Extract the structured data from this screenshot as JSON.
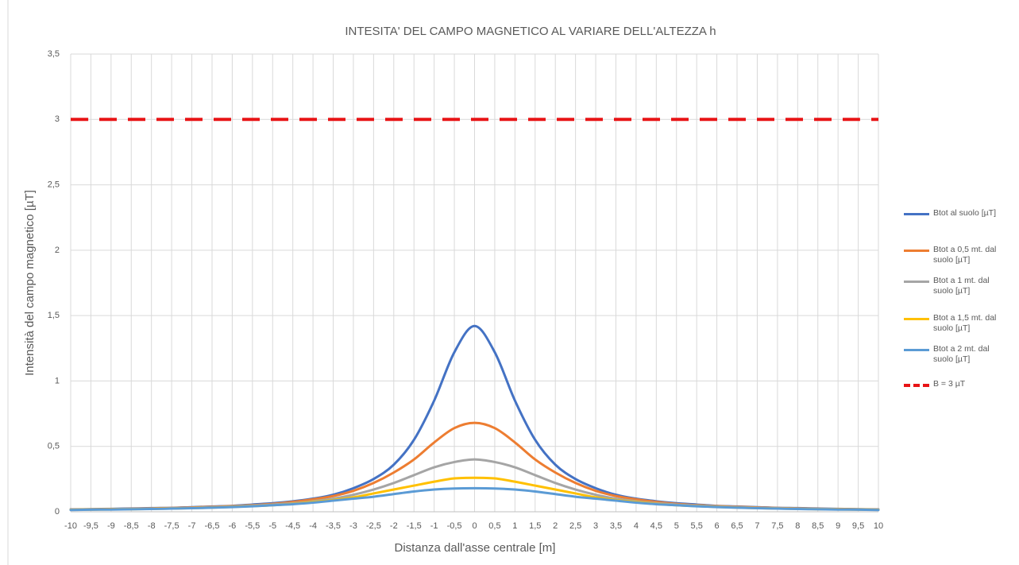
{
  "chart_data": {
    "type": "line",
    "title": "INTESITA' DEL CAMPO MAGNETICO AL VARIARE DELL'ALTEZZA h",
    "x_label": "Distanza dall'asse centrale [m]",
    "y_label": "Intensità del campo magnetico [µT]",
    "categories": [
      "-10",
      "-9,5",
      "-9",
      "-8,5",
      "-8",
      "-7,5",
      "-7",
      "-6,5",
      "-6",
      "-5,5",
      "-5",
      "-4,5",
      "-4",
      "-3,5",
      "-3",
      "-2,5",
      "-2",
      "-1,5",
      "-1",
      "-0,5",
      "0",
      "0,5",
      "1",
      "1,5",
      "2",
      "2,5",
      "3",
      "3,5",
      "4",
      "4,5",
      "5",
      "5,5",
      "6",
      "6,5",
      "7",
      "7,5",
      "8",
      "8,5",
      "9",
      "9,5",
      "10"
    ],
    "ylim": [
      0,
      3.5
    ],
    "yticks": [
      0,
      {
        "value": 0.5,
        "label": "0,5"
      },
      1,
      {
        "value": 1.5,
        "label": "1,5"
      },
      2,
      {
        "value": 2.5,
        "label": "2,5"
      },
      3,
      {
        "value": 3.5,
        "label": "3,5"
      }
    ],
    "grid": true,
    "legend": "right",
    "series": [
      {
        "name": "Btot al suolo [µT]",
        "color": "#4472c4",
        "values": [
          0.018,
          0.02,
          0.022,
          0.025,
          0.028,
          0.03,
          0.035,
          0.04,
          0.045,
          0.055,
          0.065,
          0.08,
          0.1,
          0.13,
          0.18,
          0.25,
          0.36,
          0.55,
          0.85,
          1.22,
          1.42,
          1.22,
          0.85,
          0.55,
          0.36,
          0.25,
          0.18,
          0.13,
          0.1,
          0.08,
          0.065,
          0.055,
          0.045,
          0.04,
          0.035,
          0.03,
          0.028,
          0.025,
          0.022,
          0.02,
          0.018
        ]
      },
      {
        "name": "Btot a 0,5 mt. dal suolo [µT]",
        "color": "#ed7d31",
        "values": [
          0.017,
          0.019,
          0.021,
          0.023,
          0.026,
          0.029,
          0.033,
          0.038,
          0.043,
          0.05,
          0.06,
          0.075,
          0.095,
          0.12,
          0.16,
          0.22,
          0.3,
          0.4,
          0.53,
          0.64,
          0.68,
          0.64,
          0.53,
          0.4,
          0.3,
          0.22,
          0.16,
          0.12,
          0.095,
          0.075,
          0.06,
          0.05,
          0.043,
          0.038,
          0.033,
          0.029,
          0.026,
          0.023,
          0.021,
          0.019,
          0.017
        ]
      },
      {
        "name": "Btot a 1 mt. dal suolo [µT]",
        "color": "#a5a5a5",
        "values": [
          0.016,
          0.018,
          0.02,
          0.022,
          0.024,
          0.027,
          0.03,
          0.035,
          0.04,
          0.047,
          0.055,
          0.065,
          0.08,
          0.1,
          0.13,
          0.17,
          0.22,
          0.28,
          0.34,
          0.38,
          0.4,
          0.38,
          0.34,
          0.28,
          0.22,
          0.17,
          0.13,
          0.1,
          0.08,
          0.065,
          0.055,
          0.047,
          0.04,
          0.035,
          0.03,
          0.027,
          0.024,
          0.022,
          0.02,
          0.018,
          0.016
        ]
      },
      {
        "name": "Btot a 1,5 mt. dal suolo [µT]",
        "color": "#ffc000",
        "values": [
          0.015,
          0.017,
          0.018,
          0.02,
          0.022,
          0.025,
          0.028,
          0.032,
          0.037,
          0.043,
          0.05,
          0.06,
          0.075,
          0.09,
          0.11,
          0.14,
          0.17,
          0.2,
          0.23,
          0.255,
          0.26,
          0.255,
          0.23,
          0.2,
          0.17,
          0.14,
          0.11,
          0.09,
          0.075,
          0.06,
          0.05,
          0.043,
          0.037,
          0.032,
          0.028,
          0.025,
          0.022,
          0.02,
          0.018,
          0.017,
          0.015
        ]
      },
      {
        "name": "Btot a 2 mt. dal suolo [µT]",
        "color": "#5b9bd5",
        "values": [
          0.014,
          0.016,
          0.017,
          0.019,
          0.021,
          0.024,
          0.027,
          0.031,
          0.036,
          0.042,
          0.05,
          0.058,
          0.07,
          0.085,
          0.1,
          0.115,
          0.135,
          0.155,
          0.17,
          0.178,
          0.18,
          0.178,
          0.17,
          0.155,
          0.135,
          0.115,
          0.1,
          0.085,
          0.07,
          0.058,
          0.05,
          0.042,
          0.036,
          0.031,
          0.027,
          0.024,
          0.021,
          0.019,
          0.017,
          0.016,
          0.014
        ]
      },
      {
        "name": "B = 3 µT",
        "color": "#e81416",
        "dashed": true,
        "values": [
          3,
          3,
          3,
          3,
          3,
          3,
          3,
          3,
          3,
          3,
          3,
          3,
          3,
          3,
          3,
          3,
          3,
          3,
          3,
          3,
          3,
          3,
          3,
          3,
          3,
          3,
          3,
          3,
          3,
          3,
          3,
          3,
          3,
          3,
          3,
          3,
          3,
          3,
          3,
          3,
          3
        ]
      }
    ]
  }
}
